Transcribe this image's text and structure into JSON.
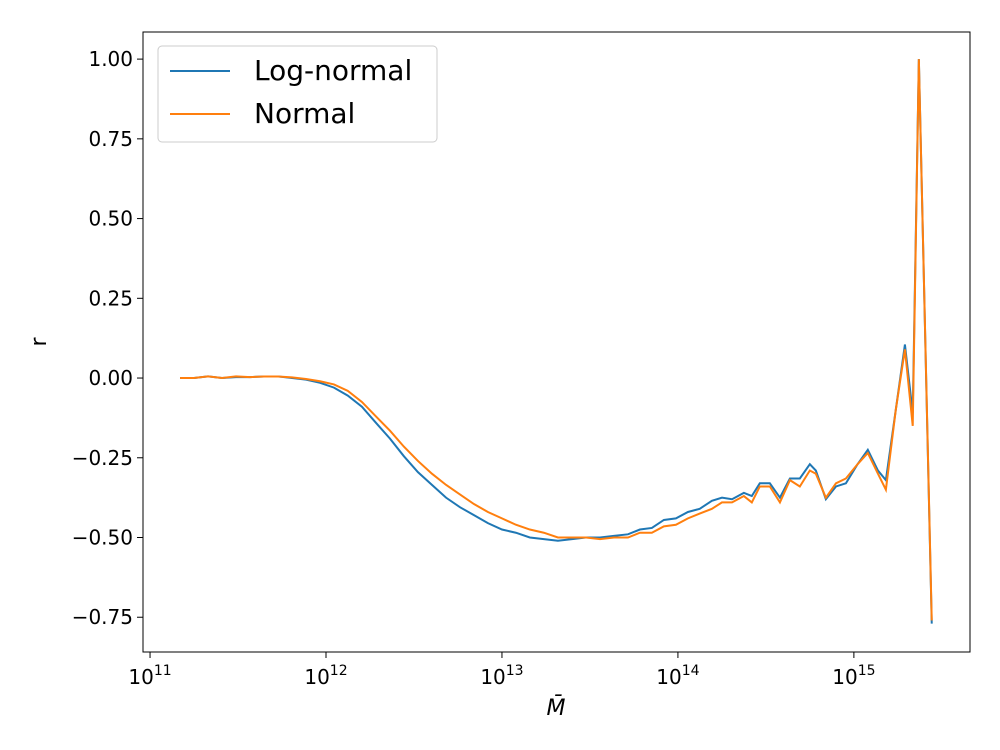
{
  "chart_data": {
    "type": "line",
    "xlabel": "M̄",
    "ylabel": "r",
    "xscale": "log",
    "x": [
      148100000000.0,
      177800000000.0,
      213600000000.0,
      256500000000.0,
      308100000000.0,
      370000000000.0,
      444000000000.0,
      533000000000.0,
      641000000000.0,
      770000000000.0,
      925000000000.0,
      1110000000000.0,
      1330000000000.0,
      1600000000000.0,
      1920000000000.0,
      2310000000000.0,
      2770000000000.0,
      3330000000000.0,
      4000000000000.0,
      4810000000000.0,
      5770000000000.0,
      6930000000000.0,
      8320000000000.0,
      10000000000000.0,
      12000000000000.0,
      14400000000000.0,
      17300000000000.0,
      20800000000000.0,
      25000000000000.0,
      30000000000000.0,
      36100000000000.0,
      43300000000000.0,
      52000000000000.0,
      60800000000000.0,
      71100000000000.0,
      83200000000000.0,
      97400000000000.0,
      114000000000000.0,
      133000000000000.0,
      156000000000000.0,
      178000000000000.0,
      203000000000000.0,
      237000000000000.0,
      263000000000000.0,
      292000000000000.0,
      333000000000000.0,
      380000000000000.0,
      433000000000000.0,
      493000000000000.0,
      562000000000000.0,
      608000000000000.0,
      693000000000000.0,
      791000000000000.0,
      901000000000000.0,
      1050000000000000.0,
      1200000000000000.0,
      1370000000000000.0,
      1520000000000000.0,
      1730000000000000.0,
      1950000000000000.0,
      2160000000000000.0,
      2340000000000000.0,
      2770000000000000.0
    ],
    "series": [
      {
        "name": "Log-normal",
        "color": "#1f77b4",
        "values": [
          0,
          0,
          0.005,
          0,
          0.003,
          0.003,
          0.005,
          0.005,
          0,
          -0.005,
          -0.015,
          -0.03,
          -0.055,
          -0.09,
          -0.14,
          -0.19,
          -0.245,
          -0.295,
          -0.335,
          -0.375,
          -0.405,
          -0.43,
          -0.455,
          -0.475,
          -0.485,
          -0.5,
          -0.505,
          -0.51,
          -0.505,
          -0.5,
          -0.5,
          -0.495,
          -0.49,
          -0.475,
          -0.47,
          -0.445,
          -0.44,
          -0.42,
          -0.41,
          -0.385,
          -0.375,
          -0.38,
          -0.36,
          -0.37,
          -0.33,
          -0.33,
          -0.375,
          -0.315,
          -0.315,
          -0.27,
          -0.29,
          -0.38,
          -0.34,
          -0.33,
          -0.27,
          -0.225,
          -0.29,
          -0.32,
          -0.1,
          0.105,
          -0.11,
          1.0,
          -0.77
        ]
      },
      {
        "name": "Normal",
        "color": "#ff7f0e",
        "values": [
          0,
          0,
          0.005,
          0,
          0.005,
          0.003,
          0.005,
          0.005,
          0.002,
          -0.003,
          -0.01,
          -0.02,
          -0.04,
          -0.075,
          -0.12,
          -0.165,
          -0.215,
          -0.26,
          -0.3,
          -0.335,
          -0.365,
          -0.395,
          -0.42,
          -0.44,
          -0.46,
          -0.475,
          -0.485,
          -0.5,
          -0.5,
          -0.5,
          -0.505,
          -0.5,
          -0.5,
          -0.485,
          -0.485,
          -0.465,
          -0.46,
          -0.44,
          -0.425,
          -0.41,
          -0.39,
          -0.39,
          -0.37,
          -0.39,
          -0.34,
          -0.34,
          -0.39,
          -0.32,
          -0.34,
          -0.29,
          -0.3,
          -0.375,
          -0.33,
          -0.315,
          -0.27,
          -0.235,
          -0.3,
          -0.35,
          -0.1,
          0.09,
          -0.15,
          1.0,
          -0.76
        ]
      }
    ],
    "xlim": [
      91200000000.0,
      4570000000000000.0
    ],
    "xticks": [
      {
        "value": 100000000000.0,
        "label": "10",
        "exponent": "11"
      },
      {
        "value": 1000000000000.0,
        "label": "10",
        "exponent": "12"
      },
      {
        "value": 10000000000000.0,
        "label": "10",
        "exponent": "13"
      },
      {
        "value": 100000000000000.0,
        "label": "10",
        "exponent": "14"
      },
      {
        "value": 1000000000000000.0,
        "label": "10",
        "exponent": "15"
      }
    ],
    "ylim": [
      -0.859,
      1.085
    ],
    "yticks": [
      {
        "value": -0.75,
        "label": "−0.75"
      },
      {
        "value": -0.5,
        "label": "−0.50"
      },
      {
        "value": -0.25,
        "label": "−0.25"
      },
      {
        "value": 0,
        "label": "0.00"
      },
      {
        "value": 0.25,
        "label": "0.25"
      },
      {
        "value": 0.5,
        "label": "0.50"
      },
      {
        "value": 0.75,
        "label": "0.75"
      },
      {
        "value": 1,
        "label": "1.00"
      }
    ],
    "grid": false,
    "legend": "upper-left"
  }
}
